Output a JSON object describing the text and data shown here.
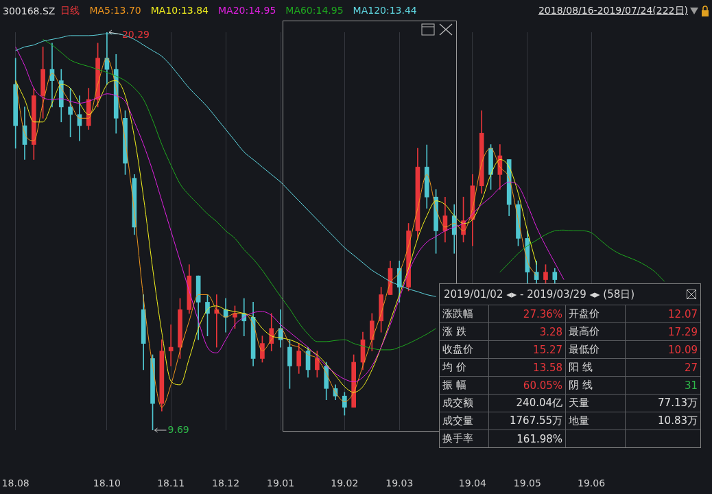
{
  "chart_data": [
    {
      "type": "candlestick",
      "title": "300168.SZ",
      "legend_title": "日线",
      "subtitle": "2018/08/16-2019/07/24(222日)",
      "legend": "top left",
      "grid": "x",
      "categories": [
        "18.08",
        null,
        null,
        null,
        null,
        null,
        null,
        null,
        null,
        null,
        "18.10",
        null,
        null,
        null,
        null,
        null,
        null,
        "18.11",
        null,
        null,
        null,
        null,
        null,
        "18.12",
        null,
        null,
        null,
        null,
        null,
        "19.01",
        null,
        null,
        null,
        null,
        null,
        null,
        "19.02",
        null,
        null,
        null,
        null,
        null,
        "19.03",
        null,
        null,
        null,
        null,
        null,
        null,
        null,
        "19.04",
        null,
        null,
        null,
        null,
        null,
        "19.05",
        null,
        null,
        null,
        null,
        null,
        null,
        "19.06",
        null,
        null,
        null,
        null,
        null,
        null,
        null,
        null,
        null,
        null
      ],
      "ohlc": [
        [
          18.9,
          19.6,
          17.2,
          17.8
        ],
        [
          17.8,
          18.3,
          16.9,
          17.3
        ],
        [
          17.3,
          18.8,
          16.9,
          18.6
        ],
        [
          18.6,
          19.9,
          18.0,
          19.3
        ],
        [
          19.3,
          20.0,
          18.3,
          19.0
        ],
        [
          19.0,
          19.3,
          17.9,
          18.3
        ],
        [
          18.3,
          18.8,
          17.5,
          18.1
        ],
        [
          18.1,
          18.6,
          17.4,
          17.8
        ],
        [
          17.8,
          18.8,
          17.7,
          18.5
        ],
        [
          18.5,
          20.0,
          18.3,
          19.6
        ],
        [
          19.6,
          20.29,
          18.9,
          19.3
        ],
        [
          19.3,
          19.7,
          17.6,
          18.0
        ],
        [
          18.0,
          18.2,
          16.5,
          16.8
        ],
        [
          16.4,
          16.5,
          14.9,
          15.1
        ],
        [
          12.9,
          13.3,
          11.3,
          12.0
        ],
        [
          11.6,
          11.7,
          9.69,
          10.4
        ],
        [
          10.4,
          12.1,
          10.2,
          11.8
        ],
        [
          11.8,
          12.5,
          11.4,
          11.9
        ],
        [
          11.9,
          13.2,
          11.6,
          12.9
        ],
        [
          12.9,
          14.1,
          12.8,
          13.8
        ],
        [
          13.8,
          13.8,
          12.1,
          13.1
        ],
        [
          13.1,
          13.3,
          12.2,
          12.8
        ],
        [
          12.8,
          13.3,
          11.9,
          12.9
        ],
        [
          12.9,
          13.2,
          12.3,
          12.7
        ],
        [
          12.7,
          13.0,
          12.4,
          12.8
        ],
        [
          12.8,
          13.2,
          12.2,
          12.6
        ],
        [
          12.7,
          13.1,
          11.4,
          11.6
        ],
        [
          11.6,
          12.2,
          11.5,
          12.0
        ],
        [
          12.0,
          12.8,
          11.8,
          12.4
        ],
        [
          12.4,
          12.9,
          11.9,
          12.1
        ],
        [
          11.9,
          12.1,
          10.8,
          11.4
        ],
        [
          11.4,
          12.0,
          11.2,
          11.8
        ],
        [
          11.8,
          11.9,
          11.1,
          11.3
        ],
        [
          11.3,
          11.8,
          11.1,
          11.6
        ],
        [
          11.4,
          11.5,
          10.5,
          10.8
        ],
        [
          10.8,
          10.9,
          10.5,
          10.6
        ],
        [
          10.6,
          10.7,
          10.09,
          10.3
        ],
        [
          10.3,
          11.7,
          10.3,
          11.5
        ],
        [
          11.5,
          12.3,
          11.3,
          12.1
        ],
        [
          12.1,
          12.8,
          11.8,
          12.6
        ],
        [
          12.6,
          13.5,
          12.3,
          13.3
        ],
        [
          13.3,
          14.2,
          13.3,
          14.0
        ],
        [
          14.0,
          14.2,
          13.1,
          13.5
        ],
        [
          13.5,
          15.2,
          13.4,
          15.0
        ],
        [
          15.0,
          17.2,
          14.8,
          16.7
        ],
        [
          16.7,
          17.29,
          15.6,
          15.9
        ],
        [
          15.9,
          16.1,
          14.4,
          15.0
        ],
        [
          15.0,
          15.9,
          14.7,
          15.4
        ],
        [
          15.4,
          15.7,
          14.4,
          14.9
        ],
        [
          14.9,
          15.9,
          14.7,
          15.27
        ],
        [
          15.3,
          16.5,
          14.6,
          16.2
        ],
        [
          16.2,
          18.2,
          16.0,
          17.6
        ],
        [
          17.2,
          17.3,
          16.1,
          16.5
        ],
        [
          16.5,
          17.3,
          16.1,
          17.0
        ],
        [
          16.9,
          16.9,
          15.4,
          15.7
        ],
        [
          15.7,
          15.8,
          14.6,
          14.8
        ],
        [
          14.8,
          15.0,
          13.6,
          13.9
        ],
        [
          13.9,
          14.2,
          13.6,
          13.7
        ],
        [
          13.7,
          14.1,
          13.6,
          13.9
        ],
        [
          13.9,
          14.0,
          13.6,
          13.7
        ],
        null,
        null,
        null,
        null,
        null,
        null,
        null,
        null,
        null,
        null,
        null,
        null,
        null,
        null
      ],
      "colors": [
        "#4fc6d0",
        "#4fc6d0",
        "#e8363a",
        "#e8363a",
        "#4fc6d0",
        "#4fc6d0",
        "#4fc6d0",
        "#4fc6d0",
        "#e8363a",
        "#e8363a",
        "#4fc6d0",
        "#4fc6d0",
        "#4fc6d0",
        "#4fc6d0",
        "#4fc6d0",
        "#4fc6d0",
        "#e8363a",
        "#e8363a",
        "#e8363a",
        "#e8363a",
        "#4fc6d0",
        "#4fc6d0",
        "#e8363a",
        "#4fc6d0",
        "#e8363a",
        "#4fc6d0",
        "#4fc6d0",
        "#e8363a",
        "#e8363a",
        "#4fc6d0",
        "#4fc6d0",
        "#e8363a",
        "#4fc6d0",
        "#e8363a",
        "#4fc6d0",
        "#4fc6d0",
        "#4fc6d0",
        "#e8363a",
        "#e8363a",
        "#e8363a",
        "#e8363a",
        "#e8363a",
        "#4fc6d0",
        "#e8363a",
        "#e8363a",
        "#4fc6d0",
        "#4fc6d0",
        "#e8363a",
        "#4fc6d0",
        "#e8363a",
        "#e8363a",
        "#e8363a",
        "#4fc6d0",
        "#e8363a",
        "#4fc6d0",
        "#4fc6d0",
        "#4fc6d0",
        "#4fc6d0",
        "#e8363a",
        "#4fc6d0",
        null,
        null,
        null,
        null,
        null,
        null,
        null,
        null,
        null,
        null,
        null,
        null,
        null,
        null
      ],
      "series": [
        {
          "type": "line",
          "name": "MA5:13.70",
          "color": "#f0961e",
          "values": [
            19.0,
            17.6,
            17.4,
            18.4,
            19.2,
            18.8,
            18.4,
            18.0,
            18.0,
            18.9,
            19.6,
            18.8,
            17.4,
            15.5,
            13.2,
            11.4,
            10.3,
            10.9,
            11.8,
            12.6,
            13.3,
            13.3,
            12.9,
            12.7,
            12.8,
            12.8,
            12.5,
            11.8,
            12.1,
            12.4,
            12.0,
            11.9,
            11.7,
            11.6,
            11.2,
            10.7,
            10.45,
            10.7,
            11.4,
            12.1,
            12.8,
            13.6,
            13.9,
            14.6,
            15.6,
            16.5,
            15.6,
            15.1,
            15.2,
            15.0,
            15.6,
            16.8,
            17.2,
            16.7,
            16.4,
            15.3,
            14.2,
            13.8,
            null,
            null,
            null,
            null,
            null,
            null,
            null,
            null,
            null,
            null,
            null,
            null,
            null,
            null,
            null,
            null
          ]
        },
        {
          "type": "line",
          "name": "MA10:13.84",
          "color": "#f2f01e",
          "values": [
            19.0,
            18.5,
            17.9,
            17.9,
            18.4,
            18.9,
            18.8,
            18.4,
            18.1,
            18.4,
            18.9,
            19.0,
            18.6,
            17.5,
            15.9,
            14.0,
            12.3,
            11.0,
            10.9,
            11.6,
            12.4,
            12.9,
            13.0,
            12.9,
            12.85,
            12.8,
            12.7,
            12.4,
            12.2,
            12.15,
            12.1,
            12.0,
            11.85,
            11.7,
            11.45,
            11.15,
            10.85,
            10.7,
            10.85,
            11.3,
            11.9,
            12.6,
            13.3,
            14.0,
            14.8,
            15.4,
            15.8,
            15.7,
            15.4,
            15.2,
            15.3,
            15.8,
            16.5,
            16.9,
            16.7,
            16.0,
            15.0,
            14.1,
            null,
            null,
            null,
            null,
            null,
            null,
            null,
            null,
            null,
            null,
            null,
            null,
            null,
            null,
            null,
            null
          ]
        },
        {
          "type": "line",
          "name": "MA20:14.95",
          "color": "#e020e0",
          "values": [
            19.9,
            19.4,
            18.8,
            18.55,
            18.5,
            18.52,
            18.45,
            18.4,
            18.45,
            18.55,
            18.65,
            18.6,
            18.45,
            17.9,
            17.3,
            16.6,
            15.8,
            15.0,
            14.2,
            13.4,
            12.6,
            11.9,
            11.75,
            12.1,
            12.5,
            12.7,
            12.82,
            12.85,
            12.75,
            12.5,
            12.3,
            12.1,
            11.9,
            11.65,
            11.4,
            11.2,
            11.05,
            10.98,
            11.1,
            11.4,
            11.9,
            12.5,
            13.2,
            13.9,
            14.4,
            14.7,
            14.85,
            15.0,
            15.1,
            15.2,
            15.45,
            15.7,
            15.9,
            16.15,
            16.3,
            16.2,
            15.7,
            15.1,
            14.6,
            14.15,
            13.7,
            null,
            null,
            null,
            null,
            null,
            null,
            null,
            null,
            null,
            null,
            null,
            null,
            null
          ]
        },
        {
          "type": "line",
          "name": "MA60:14.95",
          "color": "#1fa81f",
          "values": [
            null,
            null,
            null,
            20.1,
            19.95,
            19.75,
            19.55,
            19.45,
            19.38,
            19.3,
            19.22,
            19.12,
            19.0,
            18.8,
            18.5,
            17.95,
            17.3,
            16.75,
            16.25,
            15.95,
            15.7,
            15.45,
            15.25,
            15.0,
            14.8,
            14.5,
            14.25,
            13.95,
            13.6,
            13.25,
            12.92,
            12.55,
            12.25,
            12.05,
            12.05,
            12.08,
            12.1,
            12.0,
            11.93,
            11.87,
            11.83,
            11.83,
            11.9,
            12.0,
            12.12,
            12.25,
            12.4,
            null,
            null,
            null,
            null,
            null,
            null,
            13.9,
            14.15,
            14.4,
            14.6,
            14.75,
            14.9,
            15.0,
            15.02,
            15.0,
            15.0,
            14.95,
            14.75,
            14.55,
            14.4,
            14.3,
            14.2,
            14.07,
            13.9,
            13.65,
            null,
            null
          ]
        },
        {
          "type": "line",
          "name": "MA120:13.44",
          "color": "#5fd6e0",
          "values": [
            19.8,
            19.9,
            19.95,
            20.05,
            20.1,
            20.15,
            20.2,
            20.2,
            20.2,
            20.22,
            20.25,
            20.25,
            20.2,
            20.1,
            19.95,
            19.8,
            19.65,
            19.4,
            19.1,
            18.8,
            18.55,
            18.3,
            18.0,
            17.7,
            17.4,
            17.1,
            16.9,
            16.7,
            16.5,
            16.3,
            16.05,
            15.8,
            15.55,
            15.3,
            15.05,
            14.8,
            14.55,
            14.35,
            14.15,
            13.95,
            13.8,
            13.65,
            13.55,
            13.45,
            13.38,
            13.3,
            13.25,
            null,
            null,
            null,
            null,
            null,
            null,
            null,
            null,
            null,
            null,
            null,
            null,
            null,
            null,
            null,
            null,
            null,
            null,
            null,
            null,
            null,
            null,
            null,
            null,
            null,
            null,
            null
          ]
        }
      ],
      "annotations": [
        "20.29",
        "9.69"
      ]
    },
    {
      "type": "other",
      "title": "2019/01/02 ◂▸ - 2019/03/29 ◂▸ (58日)",
      "annotations": [
        "涨跌幅",
        "27.36%",
        "开盘价",
        "12.07",
        "涨  跌",
        "3.28",
        "最高价",
        "17.29",
        "收盘价",
        "15.27",
        "最低价",
        "10.09",
        "均  价",
        "13.58",
        "阳  线",
        "27",
        "振  幅",
        "60.05%",
        "阴  线",
        "31",
        "成交额",
        "240.04亿",
        "天量",
        "77.13万",
        "成交量",
        "1767.55万",
        "地量",
        "10.83万",
        "换手率",
        "161.98%"
      ]
    }
  ]
}
